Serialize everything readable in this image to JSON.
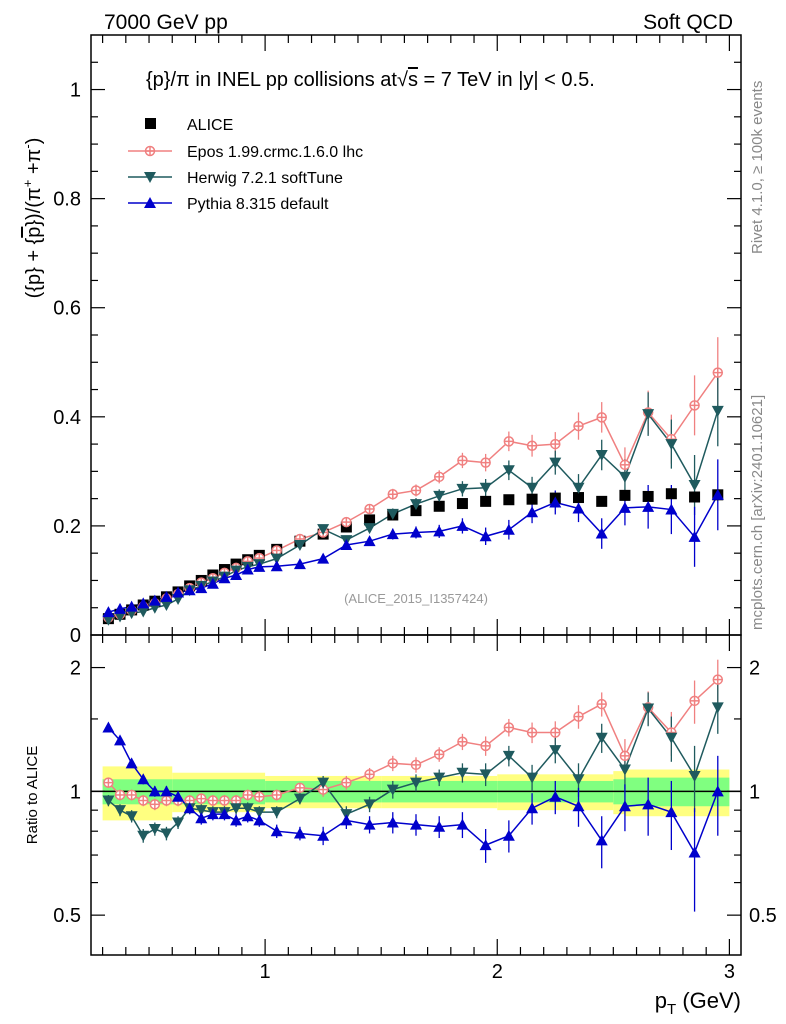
{
  "header": {
    "left": "7000 GeV pp",
    "right": "Soft QCD"
  },
  "plot_title": "{p}/π in INEL pp collisions at√s =  7 TeV in |y| < 0.5.",
  "plot_title_parts": {
    "main": "{p}/π in INEL pp collisions at",
    "sqrt": "√",
    "s": "s",
    "rest": " =  7 TeV in |y| < 0.5."
  },
  "y_label_main": {
    "p1": "({p} + {",
    "pbar": "p",
    "p2": "})/(π",
    "sup1": "+",
    "p3": " +π",
    "sup2": "-",
    "p4": ")"
  },
  "y_label_ratio": "Ratio to ALICE",
  "x_label": {
    "p": "p",
    "sub": "T",
    "unit": " (GeV)"
  },
  "watermark": "(ALICE_2015_I1357424)",
  "side_text_top": "Rivet 4.1.0, ≥ 100k events",
  "side_text_bottom": "mcplots.cern.ch [arXiv:2401.10621]",
  "colors": {
    "alice": "#000000",
    "epos": "#f08080",
    "herwig": "#1f5a5e",
    "pythia": "#0000cc",
    "band_yellow": "#ffff80",
    "band_green": "#80ff80"
  },
  "chart_data": [
    {
      "type": "scatter",
      "title": "{p}/π in INEL pp collisions at√s =  7 TeV in |y| < 0.5.",
      "xlabel": "p_T (GeV)",
      "ylabel": "({p} + {p̄})/(π+ +π-)",
      "xlim": [
        0.25,
        3.05
      ],
      "ylim": [
        0,
        1.1
      ],
      "yticks": [
        0.2,
        0.4,
        0.6,
        0.8,
        1
      ],
      "ytick_labels": [
        "0.2",
        "0.4",
        "0.6",
        "0.8",
        "1"
      ],
      "ybottom_label": "0",
      "legend": [
        "ALICE",
        "Epos 1.99.crmc.1.6.0 lhc",
        "Herwig 7.2.1 softTune",
        "Pythia 8.315 default"
      ],
      "series": [
        {
          "name": "ALICE",
          "x": [
            0.325,
            0.375,
            0.425,
            0.475,
            0.525,
            0.575,
            0.625,
            0.675,
            0.725,
            0.775,
            0.825,
            0.875,
            0.925,
            0.975,
            1.05,
            1.15,
            1.25,
            1.35,
            1.45,
            1.55,
            1.65,
            1.75,
            1.85,
            1.95,
            2.05,
            2.15,
            2.25,
            2.35,
            2.45,
            2.55,
            2.65,
            2.75,
            2.85,
            2.95
          ],
          "y": [
            0.03,
            0.038,
            0.046,
            0.055,
            0.062,
            0.07,
            0.079,
            0.09,
            0.1,
            0.11,
            0.12,
            0.13,
            0.138,
            0.146,
            0.157,
            0.172,
            0.185,
            0.198,
            0.211,
            0.22,
            0.228,
            0.236,
            0.241,
            0.245,
            0.248,
            0.249,
            0.251,
            0.252,
            0.245,
            0.256,
            0.254,
            0.259,
            0.253,
            0.257
          ]
        },
        {
          "name": "Epos 1.99.crmc.1.6.0 lhc",
          "x": [
            0.325,
            0.375,
            0.425,
            0.475,
            0.525,
            0.575,
            0.625,
            0.675,
            0.725,
            0.775,
            0.825,
            0.875,
            0.925,
            0.975,
            1.05,
            1.15,
            1.25,
            1.35,
            1.45,
            1.55,
            1.65,
            1.75,
            1.85,
            1.95,
            2.05,
            2.15,
            2.25,
            2.35,
            2.45,
            2.55,
            2.65,
            2.75,
            2.85,
            2.95
          ],
          "y": [
            0.032,
            0.038,
            0.045,
            0.052,
            0.058,
            0.067,
            0.075,
            0.086,
            0.096,
            0.104,
            0.114,
            0.123,
            0.135,
            0.141,
            0.155,
            0.176,
            0.188,
            0.207,
            0.231,
            0.258,
            0.265,
            0.29,
            0.32,
            0.316,
            0.355,
            0.347,
            0.35,
            0.383,
            0.399,
            0.312,
            0.408,
            0.359,
            0.421,
            0.481
          ],
          "err": [
            0.002,
            0.002,
            0.002,
            0.002,
            0.002,
            0.002,
            0.002,
            0.003,
            0.003,
            0.003,
            0.003,
            0.003,
            0.004,
            0.004,
            0.004,
            0.005,
            0.006,
            0.007,
            0.008,
            0.01,
            0.011,
            0.012,
            0.014,
            0.016,
            0.018,
            0.02,
            0.022,
            0.025,
            0.028,
            0.032,
            0.04,
            0.045,
            0.055,
            0.065
          ]
        },
        {
          "name": "Herwig 7.2.1 softTune",
          "x": [
            0.325,
            0.375,
            0.425,
            0.475,
            0.525,
            0.575,
            0.625,
            0.675,
            0.725,
            0.775,
            0.825,
            0.875,
            0.925,
            0.975,
            1.05,
            1.15,
            1.25,
            1.35,
            1.45,
            1.55,
            1.65,
            1.75,
            1.85,
            1.95,
            2.05,
            2.15,
            2.25,
            2.35,
            2.45,
            2.55,
            2.65,
            2.75,
            2.85,
            2.95
          ],
          "y": [
            0.028,
            0.034,
            0.04,
            0.043,
            0.05,
            0.055,
            0.066,
            0.082,
            0.09,
            0.098,
            0.107,
            0.118,
            0.125,
            0.13,
            0.14,
            0.165,
            0.194,
            0.174,
            0.196,
            0.222,
            0.24,
            0.255,
            0.268,
            0.27,
            0.302,
            0.27,
            0.316,
            0.27,
            0.33,
            0.29,
            0.405,
            0.35,
            0.275,
            0.411
          ],
          "err": [
            0.002,
            0.002,
            0.002,
            0.002,
            0.002,
            0.002,
            0.002,
            0.003,
            0.003,
            0.003,
            0.003,
            0.003,
            0.004,
            0.004,
            0.004,
            0.005,
            0.006,
            0.007,
            0.008,
            0.01,
            0.011,
            0.012,
            0.014,
            0.016,
            0.018,
            0.02,
            0.022,
            0.025,
            0.028,
            0.032,
            0.04,
            0.045,
            0.055,
            0.065
          ]
        },
        {
          "name": "Pythia 8.315 default",
          "x": [
            0.325,
            0.375,
            0.425,
            0.475,
            0.525,
            0.575,
            0.625,
            0.675,
            0.725,
            0.775,
            0.825,
            0.875,
            0.925,
            0.975,
            1.05,
            1.15,
            1.25,
            1.35,
            1.45,
            1.55,
            1.65,
            1.75,
            1.85,
            1.95,
            2.05,
            2.15,
            2.25,
            2.35,
            2.45,
            2.55,
            2.65,
            2.75,
            2.85,
            2.95
          ],
          "y": [
            0.042,
            0.048,
            0.052,
            0.058,
            0.063,
            0.07,
            0.078,
            0.082,
            0.086,
            0.094,
            0.104,
            0.11,
            0.12,
            0.125,
            0.126,
            0.13,
            0.14,
            0.165,
            0.172,
            0.185,
            0.188,
            0.19,
            0.2,
            0.181,
            0.193,
            0.225,
            0.243,
            0.232,
            0.186,
            0.233,
            0.235,
            0.23,
            0.18,
            0.257
          ],
          "err": [
            0.002,
            0.002,
            0.002,
            0.002,
            0.002,
            0.002,
            0.002,
            0.003,
            0.003,
            0.003,
            0.003,
            0.003,
            0.004,
            0.004,
            0.004,
            0.005,
            0.006,
            0.007,
            0.008,
            0.01,
            0.011,
            0.012,
            0.014,
            0.016,
            0.018,
            0.02,
            0.022,
            0.025,
            0.028,
            0.032,
            0.04,
            0.045,
            0.055,
            0.065
          ]
        }
      ]
    },
    {
      "type": "scatter",
      "title": "",
      "ylabel": "Ratio to ALICE",
      "xlabel": "p_T (GeV)",
      "yscale": "log",
      "ylim": [
        0.4,
        2.4
      ],
      "xlim": [
        0.25,
        3.05
      ],
      "xticks": [
        1,
        2,
        3
      ],
      "xtick_labels": [
        "1",
        "2",
        "3"
      ],
      "yticks": [
        0.5,
        1,
        2
      ],
      "ytick_labels": [
        "0.5",
        "1",
        "2"
      ],
      "bands": {
        "x_edges": [
          0.3,
          0.6,
          1.0,
          1.5,
          2.0,
          2.5,
          2.55,
          3.0
        ],
        "yellow_halfwidth": [
          0.15,
          0.11,
          0.09,
          0.09,
          0.1,
          0.12,
          0.13
        ],
        "green_halfwidth": [
          0.07,
          0.07,
          0.06,
          0.06,
          0.06,
          0.07,
          0.08
        ]
      },
      "series": [
        {
          "name": "Epos 1.99.crmc.1.6.0 lhc",
          "y": [
            1.05,
            0.98,
            0.98,
            0.95,
            0.93,
            0.95,
            0.95,
            0.95,
            0.96,
            0.95,
            0.95,
            0.95,
            0.98,
            0.97,
            0.98,
            1.02,
            1.01,
            1.05,
            1.1,
            1.17,
            1.16,
            1.23,
            1.32,
            1.29,
            1.43,
            1.39,
            1.39,
            1.52,
            1.63,
            1.22,
            1.6,
            1.39,
            1.66,
            1.87
          ],
          "err": [
            0.03,
            0.03,
            0.03,
            0.03,
            0.03,
            0.03,
            0.03,
            0.03,
            0.03,
            0.03,
            0.03,
            0.03,
            0.03,
            0.03,
            0.03,
            0.03,
            0.04,
            0.04,
            0.04,
            0.05,
            0.05,
            0.05,
            0.06,
            0.07,
            0.07,
            0.08,
            0.09,
            0.1,
            0.11,
            0.12,
            0.15,
            0.17,
            0.2,
            0.22
          ]
        },
        {
          "name": "Herwig 7.2.1 softTune",
          "y": [
            0.95,
            0.9,
            0.87,
            0.78,
            0.81,
            0.79,
            0.84,
            0.91,
            0.9,
            0.89,
            0.89,
            0.91,
            0.91,
            0.89,
            0.89,
            0.96,
            1.05,
            0.88,
            0.93,
            1.01,
            1.05,
            1.08,
            1.11,
            1.1,
            1.22,
            1.08,
            1.26,
            1.07,
            1.35,
            1.13,
            1.59,
            1.35,
            1.09,
            1.6
          ],
          "err": [
            0.03,
            0.03,
            0.03,
            0.03,
            0.03,
            0.03,
            0.03,
            0.03,
            0.03,
            0.03,
            0.03,
            0.03,
            0.03,
            0.03,
            0.03,
            0.03,
            0.04,
            0.04,
            0.04,
            0.05,
            0.05,
            0.05,
            0.06,
            0.07,
            0.07,
            0.08,
            0.09,
            0.1,
            0.11,
            0.12,
            0.15,
            0.17,
            0.2,
            0.22
          ]
        },
        {
          "name": "Pythia 8.315 default",
          "y": [
            1.43,
            1.33,
            1.17,
            1.07,
            1.0,
            1.0,
            0.97,
            0.91,
            0.86,
            0.88,
            0.88,
            0.85,
            0.87,
            0.85,
            0.8,
            0.79,
            0.78,
            0.85,
            0.83,
            0.84,
            0.83,
            0.82,
            0.83,
            0.74,
            0.78,
            0.91,
            0.97,
            0.92,
            0.76,
            0.92,
            0.93,
            0.89,
            0.71,
            1.0
          ],
          "err": [
            0.03,
            0.03,
            0.03,
            0.03,
            0.03,
            0.03,
            0.03,
            0.03,
            0.03,
            0.03,
            0.03,
            0.03,
            0.03,
            0.03,
            0.03,
            0.03,
            0.04,
            0.04,
            0.04,
            0.05,
            0.05,
            0.05,
            0.06,
            0.07,
            0.07,
            0.08,
            0.09,
            0.1,
            0.11,
            0.12,
            0.15,
            0.17,
            0.2,
            0.22
          ]
        }
      ]
    }
  ]
}
